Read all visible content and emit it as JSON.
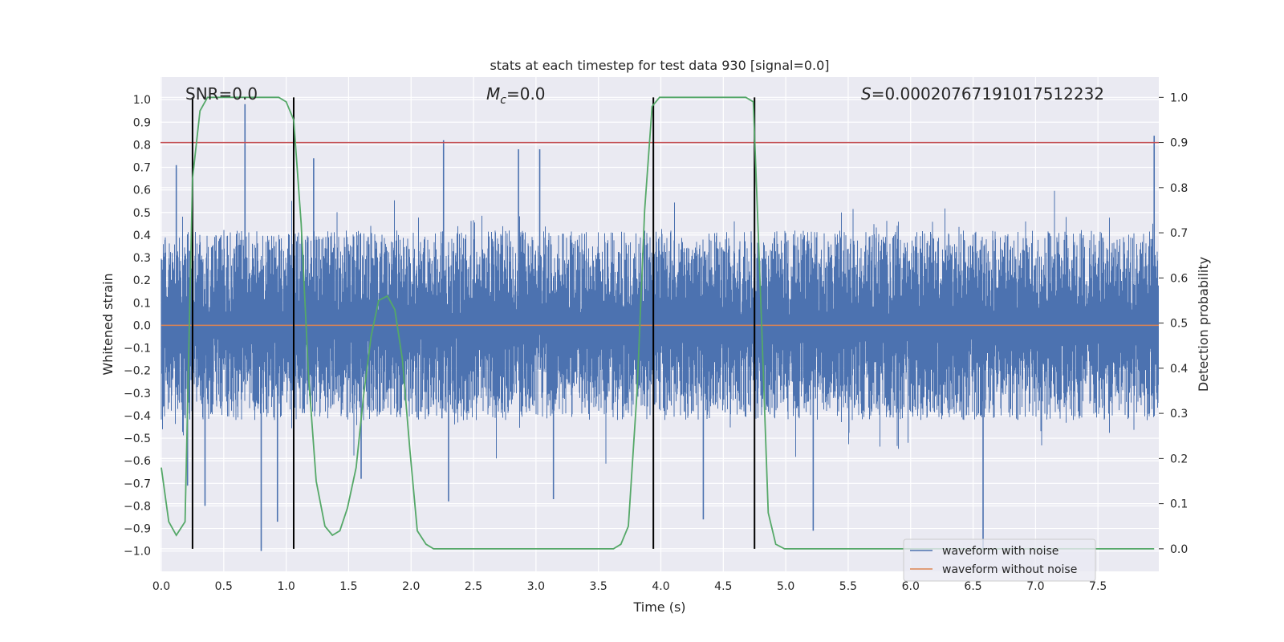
{
  "chart_data": {
    "type": "line",
    "title": "stats at each timestep for test data 930 [signal=0.0]",
    "xlabel": "Time (s)",
    "ylabel_left": "Whitened strain",
    "ylabel_right": "Detection probability",
    "xlim": [
      0.0,
      8.0
    ],
    "ylim_left": [
      -1.09,
      1.1
    ],
    "ylim_right": [
      -0.05,
      1.045
    ],
    "x_ticks": [
      0.0,
      0.5,
      1.0,
      1.5,
      2.0,
      2.5,
      3.0,
      3.5,
      4.0,
      4.5,
      5.0,
      5.5,
      6.0,
      6.5,
      7.0,
      7.5
    ],
    "x_tick_labels": [
      "0.0",
      "0.5",
      "1.0",
      "1.5",
      "2.0",
      "2.5",
      "3.0",
      "3.5",
      "4.0",
      "4.5",
      "5.0",
      "5.5",
      "6.0",
      "6.5",
      "7.0",
      "7.5"
    ],
    "y_left_ticks": [
      -1.0,
      -0.9,
      -0.8,
      -0.7,
      -0.6,
      -0.5,
      -0.4,
      -0.3,
      -0.2,
      -0.1,
      0.0,
      0.1,
      0.2,
      0.3,
      0.4,
      0.5,
      0.6,
      0.7,
      0.8,
      0.9,
      1.0
    ],
    "y_left_tick_labels": [
      "−1.0",
      "−0.9",
      "−0.8",
      "−0.7",
      "−0.6",
      "−0.5",
      "−0.4",
      "−0.3",
      "−0.2",
      "−0.1",
      "0.0",
      "0.1",
      "0.2",
      "0.3",
      "0.4",
      "0.5",
      "0.6",
      "0.7",
      "0.8",
      "0.9",
      "1.0"
    ],
    "y_right_ticks": [
      0.0,
      0.1,
      0.2,
      0.3,
      0.4,
      0.5,
      0.6,
      0.7,
      0.8,
      0.9,
      1.0
    ],
    "y_right_tick_labels": [
      "0.0",
      "0.1",
      "0.2",
      "0.3",
      "0.4",
      "0.5",
      "0.6",
      "0.7",
      "0.8",
      "0.9",
      "1.0"
    ],
    "threshold": {
      "value": 0.9,
      "axis": "right",
      "color": "#c44e52"
    },
    "vertical_lines": [
      0.25,
      1.06,
      3.94,
      4.75
    ],
    "annotations": {
      "snr": "SNR=0.0",
      "mc_symbol": "M",
      "mc_sub": "c",
      "mc_value": "=0.0",
      "s_symbol": "S",
      "s_value": "=0.00020767191017512232"
    },
    "series": [
      {
        "name": "waveform with noise",
        "axis": "left",
        "color": "#4c72b0",
        "description": "dense noise samples between about -1.0 and 1.0",
        "typical_range": [
          -0.42,
          0.42
        ],
        "spikes": [
          {
            "x": 0.12,
            "y": 0.71
          },
          {
            "x": 0.21,
            "y": -0.71
          },
          {
            "x": 0.35,
            "y": -0.8
          },
          {
            "x": 0.67,
            "y": 0.98
          },
          {
            "x": 0.8,
            "y": -1.0
          },
          {
            "x": 0.93,
            "y": -0.87
          },
          {
            "x": 1.22,
            "y": 0.74
          },
          {
            "x": 1.6,
            "y": -0.68
          },
          {
            "x": 2.26,
            "y": 0.82
          },
          {
            "x": 2.3,
            "y": -0.78
          },
          {
            "x": 2.86,
            "y": 0.78
          },
          {
            "x": 3.03,
            "y": 0.78
          },
          {
            "x": 3.14,
            "y": -0.77
          },
          {
            "x": 4.34,
            "y": -0.86
          },
          {
            "x": 5.22,
            "y": -0.91
          },
          {
            "x": 6.58,
            "y": -0.99
          },
          {
            "x": 7.95,
            "y": 0.84
          }
        ]
      },
      {
        "name": "waveform without noise",
        "axis": "left",
        "color": "#dd8452",
        "x": [
          0.0,
          8.0
        ],
        "y": [
          0.0,
          0.0
        ]
      },
      {
        "name": "detection probability",
        "axis": "right",
        "color": "#55a868",
        "x": [
          0.0,
          0.06,
          0.12,
          0.19,
          0.25,
          0.31,
          0.37,
          0.44,
          0.5,
          0.56,
          0.62,
          0.69,
          0.75,
          0.81,
          0.87,
          0.94,
          1.0,
          1.06,
          1.12,
          1.18,
          1.24,
          1.31,
          1.37,
          1.43,
          1.49,
          1.56,
          1.62,
          1.68,
          1.74,
          1.81,
          1.87,
          1.93,
          1.99,
          2.05,
          2.12,
          2.18,
          2.5,
          3.0,
          3.5,
          3.62,
          3.68,
          3.74,
          3.81,
          3.87,
          3.93,
          3.99,
          4.05,
          4.12,
          4.18,
          4.5,
          4.68,
          4.74,
          4.8,
          4.86,
          4.92,
          4.99,
          5.5,
          6.0,
          6.5,
          7.0,
          7.5,
          7.95
        ],
        "y": [
          0.18,
          0.06,
          0.03,
          0.06,
          0.82,
          0.97,
          1.0,
          1.0,
          1.0,
          1.0,
          1.0,
          1.0,
          1.0,
          1.0,
          1.0,
          1.0,
          0.99,
          0.95,
          0.72,
          0.38,
          0.15,
          0.05,
          0.03,
          0.04,
          0.09,
          0.18,
          0.34,
          0.47,
          0.55,
          0.56,
          0.53,
          0.42,
          0.22,
          0.04,
          0.01,
          0.0,
          0.0,
          0.0,
          0.0,
          0.0,
          0.01,
          0.05,
          0.35,
          0.75,
          0.98,
          1.0,
          1.0,
          1.0,
          1.0,
          1.0,
          1.0,
          0.99,
          0.55,
          0.08,
          0.01,
          0.0,
          0.0,
          0.0,
          0.0,
          0.0,
          0.0,
          0.0
        ]
      }
    ],
    "legend": {
      "location": "lower-right",
      "entries": [
        {
          "label": "waveform with noise",
          "color": "#4c72b0"
        },
        {
          "label": "waveform without noise",
          "color": "#dd8452"
        }
      ]
    },
    "background": "#eaeaf2",
    "grid": true
  }
}
